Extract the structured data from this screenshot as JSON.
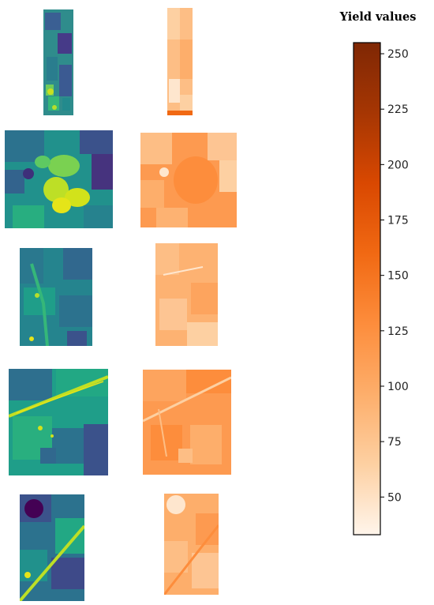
{
  "colorbar": {
    "title": "Yield values",
    "min": 33,
    "max": 255,
    "ticks": [
      50,
      75,
      100,
      125,
      150,
      175,
      200,
      225,
      250
    ],
    "tick_labels": [
      "50",
      "75",
      "100",
      "125",
      "150",
      "175",
      "200",
      "225",
      "250"
    ],
    "colors": [
      "#fff5eb",
      "#fdd0a2",
      "#fdae6b",
      "#fd8d3c",
      "#f16913",
      "#d94801",
      "#a63603",
      "#7f2704"
    ]
  },
  "panels": {
    "input_colormap": "viridis",
    "yield_colormap": "orange",
    "count": 5
  }
}
